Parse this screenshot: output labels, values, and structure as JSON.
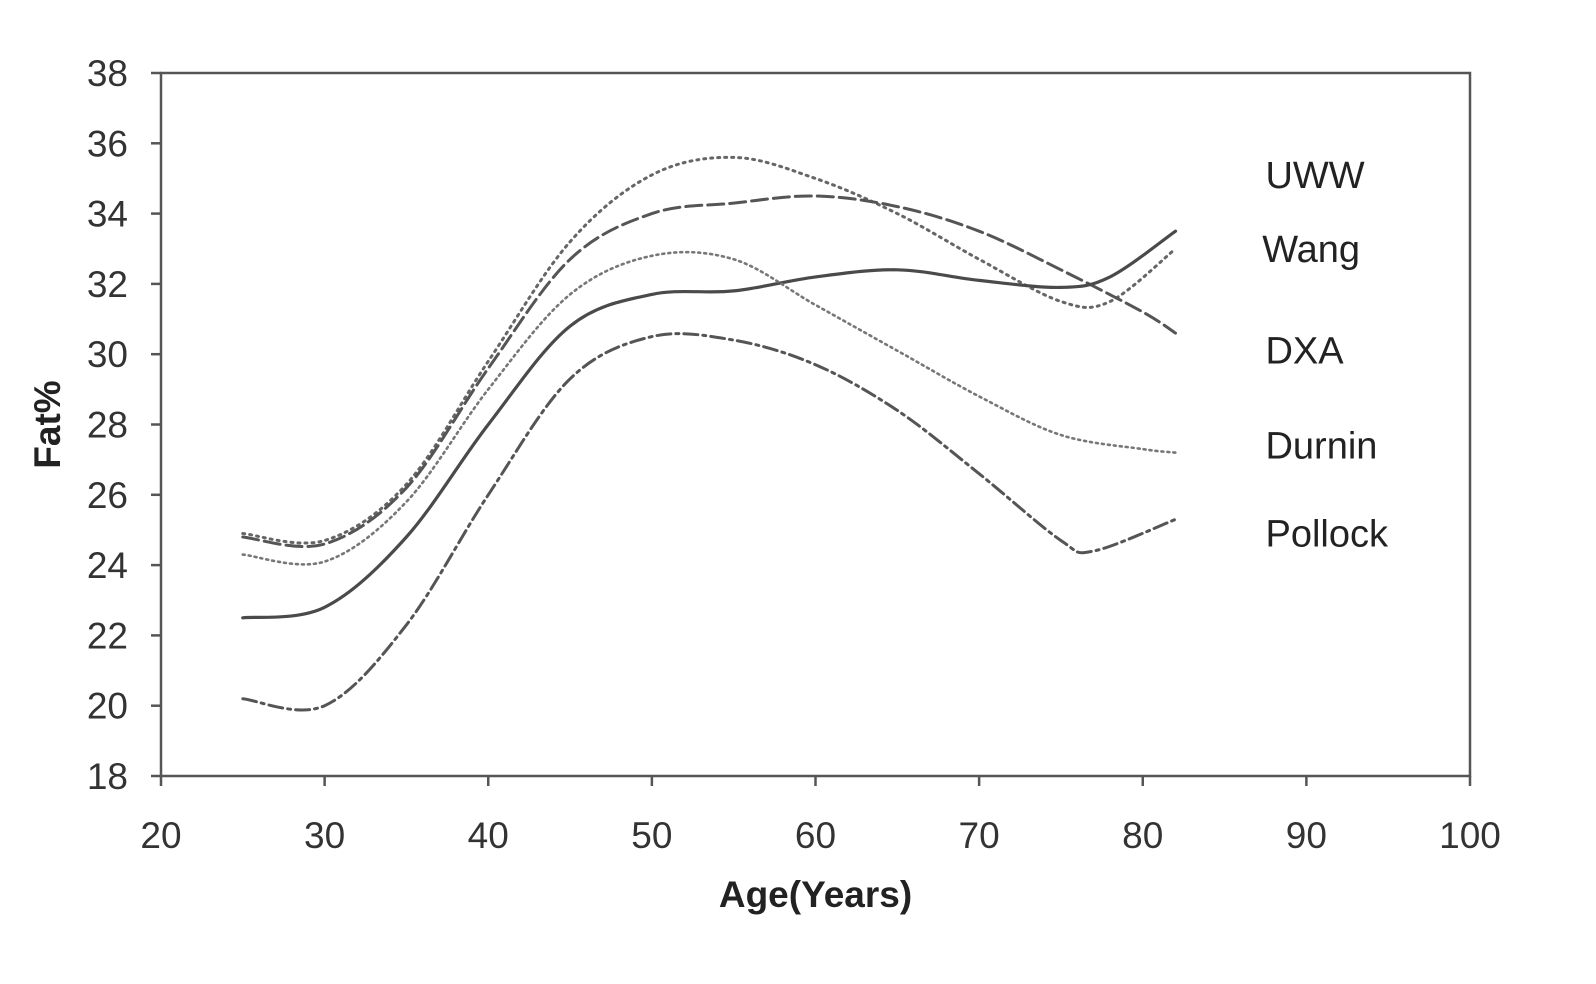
{
  "chart_data": {
    "type": "line",
    "title": "",
    "xlabel": "Age(Years)",
    "ylabel": "Fat%",
    "xlim": [
      20,
      100
    ],
    "ylim": [
      18,
      38
    ],
    "x_ticks": [
      20,
      30,
      40,
      50,
      60,
      70,
      80,
      90,
      100
    ],
    "y_ticks": [
      18,
      20,
      22,
      24,
      26,
      28,
      30,
      32,
      34,
      36,
      38
    ],
    "grid": false,
    "legend": "right (inline labels)",
    "series": [
      {
        "name": "UWW",
        "style": "dotted",
        "points": [
          [
            25,
            24.9
          ],
          [
            30,
            24.7
          ],
          [
            35,
            26.3
          ],
          [
            40,
            29.8
          ],
          [
            45,
            33.2
          ],
          [
            50,
            35.1
          ],
          [
            55,
            35.6
          ],
          [
            60,
            35.0
          ],
          [
            65,
            34.0
          ],
          [
            70,
            32.7
          ],
          [
            75,
            31.5
          ],
          [
            78,
            31.5
          ],
          [
            82,
            33.0
          ]
        ]
      },
      {
        "name": "Wang",
        "style": "dashed",
        "points": [
          [
            25,
            24.8
          ],
          [
            30,
            24.6
          ],
          [
            35,
            26.2
          ],
          [
            40,
            29.6
          ],
          [
            45,
            32.7
          ],
          [
            50,
            34.0
          ],
          [
            55,
            34.3
          ],
          [
            60,
            34.5
          ],
          [
            65,
            34.2
          ],
          [
            70,
            33.5
          ],
          [
            75,
            32.4
          ],
          [
            80,
            31.2
          ],
          [
            82,
            30.6
          ]
        ]
      },
      {
        "name": "DXA",
        "style": "solid",
        "points": [
          [
            25,
            22.5
          ],
          [
            30,
            22.8
          ],
          [
            35,
            24.8
          ],
          [
            40,
            28.0
          ],
          [
            45,
            30.8
          ],
          [
            50,
            31.7
          ],
          [
            55,
            31.8
          ],
          [
            60,
            32.2
          ],
          [
            65,
            32.4
          ],
          [
            70,
            32.1
          ],
          [
            75,
            31.9
          ],
          [
            78,
            32.2
          ],
          [
            82,
            33.5
          ]
        ]
      },
      {
        "name": "Durnin",
        "style": "dotted-fine",
        "points": [
          [
            25,
            24.3
          ],
          [
            30,
            24.1
          ],
          [
            35,
            25.8
          ],
          [
            40,
            29.0
          ],
          [
            45,
            31.7
          ],
          [
            50,
            32.8
          ],
          [
            55,
            32.7
          ],
          [
            60,
            31.4
          ],
          [
            65,
            30.1
          ],
          [
            70,
            28.8
          ],
          [
            75,
            27.7
          ],
          [
            80,
            27.3
          ],
          [
            82,
            27.2
          ]
        ]
      },
      {
        "name": "Pollock",
        "style": "dash-dot",
        "points": [
          [
            25,
            20.2
          ],
          [
            30,
            20.0
          ],
          [
            35,
            22.3
          ],
          [
            40,
            26.0
          ],
          [
            45,
            29.3
          ],
          [
            50,
            30.5
          ],
          [
            55,
            30.4
          ],
          [
            60,
            29.7
          ],
          [
            65,
            28.4
          ],
          [
            70,
            26.6
          ],
          [
            75,
            24.7
          ],
          [
            77,
            24.4
          ],
          [
            82,
            25.3
          ]
        ]
      }
    ],
    "labels": {
      "UWW": {
        "x": 87.5,
        "y": 35.1
      },
      "Wang": {
        "x": 87.3,
        "y": 33.0
      },
      "DXA": {
        "x": 87.5,
        "y": 30.1
      },
      "Durnin": {
        "x": 87.5,
        "y": 27.4
      },
      "Pollock": {
        "x": 87.5,
        "y": 24.9
      }
    }
  }
}
